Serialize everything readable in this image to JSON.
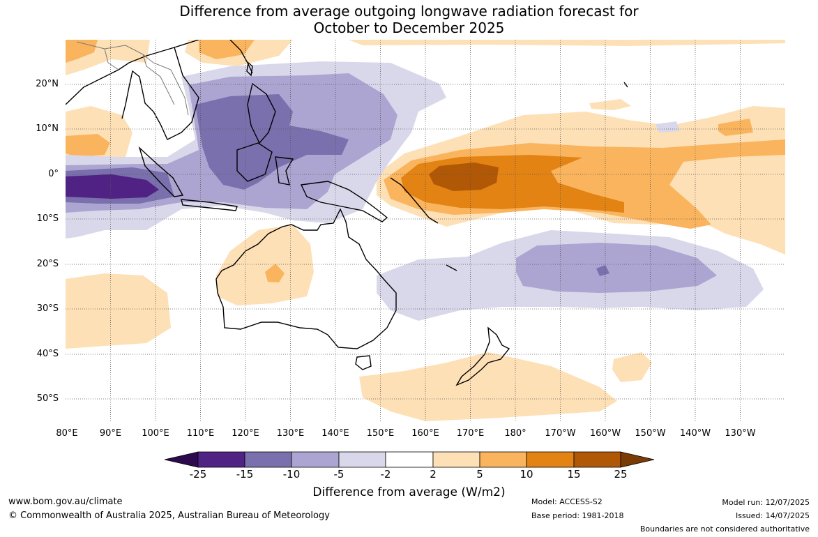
{
  "title": {
    "line1": "Difference from average outgoing longwave radiation forecast for",
    "line2": "October to December 2025"
  },
  "map": {
    "lat_labels": [
      "20°N",
      "10°N",
      "0°",
      "10°S",
      "20°S",
      "30°S",
      "40°S",
      "50°S"
    ],
    "lon_labels": [
      "80°E",
      "90°E",
      "100°E",
      "110°E",
      "120°E",
      "130°E",
      "140°E",
      "150°E",
      "160°E",
      "170°E",
      "180°",
      "170°W",
      "160°W",
      "150°W",
      "140°W",
      "130°W"
    ]
  },
  "colorbar": {
    "ticks": [
      "-25",
      "-15",
      "-10",
      "-5",
      "-2",
      "2",
      "5",
      "10",
      "15",
      "25"
    ],
    "colors": [
      "#2d0a4d",
      "#4f2283",
      "#7a70ad",
      "#aca5d1",
      "#d9d8ea",
      "#ffffff",
      "#fde0b6",
      "#fab45d",
      "#e28313",
      "#b15807",
      "#7a3b05"
    ],
    "title": "Difference from average (W/m2)"
  },
  "footer": {
    "url": "www.bom.gov.au/climate",
    "copyright": "© Commonwealth of Australia 2025, Australian Bureau of Meteorology",
    "model": "Model: ACCESS-S2",
    "base_period": "Base period: 1981-2018",
    "model_run": "Model run: 12/07/2025",
    "issued": "Issued: 14/07/2025",
    "disclaimer": "Boundaries are not considered authoritative"
  }
}
